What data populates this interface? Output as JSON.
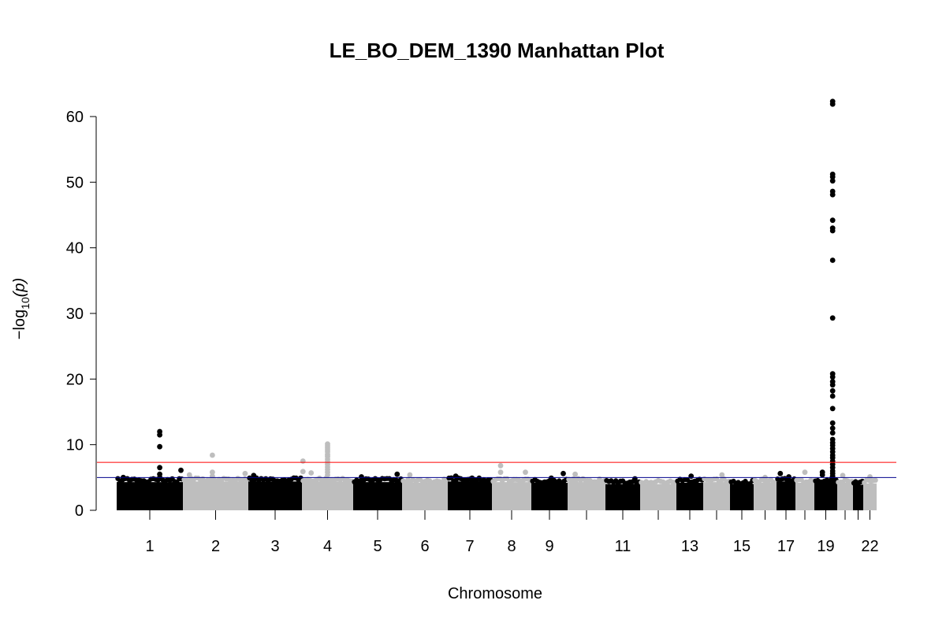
{
  "chart_data": {
    "type": "scatter",
    "title": "LE_BO_DEM_1390 Manhattan Plot",
    "xlabel": "Chromosome",
    "ylabel": "−log",
    "ylabel_sub": "10",
    "ylabel_arg": "(p)",
    "ylim": [
      0,
      62
    ],
    "yticks": [
      0,
      10,
      20,
      30,
      40,
      50,
      60
    ],
    "grid": false,
    "legend": "none",
    "colors": {
      "odd_chromosome": "#000000",
      "even_chromosome": "#bebebe",
      "suggestive_line": "#00008b",
      "genomewide_line": "#ff0000"
    },
    "thresholds": {
      "suggestive": 5,
      "genomewide": 7.3
    },
    "chromosomes": [
      "1",
      "2",
      "3",
      "4",
      "5",
      "6",
      "7",
      "8",
      "9",
      "10",
      "11",
      "12",
      "13",
      "14",
      "15",
      "16",
      "17",
      "18",
      "19",
      "20",
      "21",
      "22"
    ],
    "x_tick_labels": [
      "1",
      "2",
      "3",
      "4",
      "5",
      "6",
      "7",
      "8",
      "9",
      "",
      "11",
      "",
      "13",
      "",
      "15",
      "",
      "17",
      "",
      "19",
      "",
      "",
      "22"
    ],
    "baseline": [
      {
        "chr": "1",
        "top": 4.3
      },
      {
        "chr": "2",
        "top": 4.4
      },
      {
        "chr": "3",
        "top": 4.4
      },
      {
        "chr": "4",
        "top": 4.4
      },
      {
        "chr": "5",
        "top": 4.3
      },
      {
        "chr": "6",
        "top": 4.2
      },
      {
        "chr": "7",
        "top": 4.4
      },
      {
        "chr": "8",
        "top": 4.3
      },
      {
        "chr": "9",
        "top": 4.2
      },
      {
        "chr": "10",
        "top": 4.3
      },
      {
        "chr": "11",
        "top": 4.0
      },
      {
        "chr": "12",
        "top": 4.0
      },
      {
        "chr": "13",
        "top": 4.2
      },
      {
        "chr": "14",
        "top": 4.3
      },
      {
        "chr": "15",
        "top": 4.0
      },
      {
        "chr": "16",
        "top": 4.2
      },
      {
        "chr": "17",
        "top": 4.4
      },
      {
        "chr": "18",
        "top": 4.2
      },
      {
        "chr": "19",
        "top": 4.3
      },
      {
        "chr": "20",
        "top": 4.2
      },
      {
        "chr": "21",
        "top": 3.9
      },
      {
        "chr": "22",
        "top": 4.1
      }
    ],
    "peaks": [
      {
        "chr": "1",
        "pos": 0.65,
        "values": [
          12,
          11.5,
          9.7,
          6.5,
          5.5,
          5
        ]
      },
      {
        "chr": "1",
        "pos": 0.97,
        "values": [
          6.1
        ]
      },
      {
        "chr": "1",
        "pos": 0.1,
        "values": [
          5
        ]
      },
      {
        "chr": "2",
        "pos": 0.45,
        "values": [
          8.4,
          5.8,
          5.2
        ]
      },
      {
        "chr": "2",
        "pos": 0.1,
        "values": [
          5.4
        ]
      },
      {
        "chr": "2",
        "pos": 0.95,
        "values": [
          5.6
        ]
      },
      {
        "chr": "3",
        "pos": 0.1,
        "values": [
          5.3
        ]
      },
      {
        "chr": "4",
        "pos": 0.02,
        "values": [
          7.5,
          5.9
        ]
      },
      {
        "chr": "4",
        "pos": 0.18,
        "values": [
          5.7
        ]
      },
      {
        "chr": "4",
        "pos": 0.5,
        "values": [
          10.1,
          9.8,
          9.5,
          9.2,
          8.9,
          8.5,
          8.2,
          7.8,
          7.4,
          7.0,
          6.6,
          6.2,
          5.8,
          5.4
        ]
      },
      {
        "chr": "5",
        "pos": 0.17,
        "values": [
          5.1
        ]
      },
      {
        "chr": "5",
        "pos": 0.9,
        "values": [
          5.5
        ]
      },
      {
        "chr": "6",
        "pos": 0.17,
        "values": [
          5.4
        ]
      },
      {
        "chr": "7",
        "pos": 0.18,
        "values": [
          5.2
        ]
      },
      {
        "chr": "7",
        "pos": 0.55,
        "values": [
          4.9
        ]
      },
      {
        "chr": "8",
        "pos": 0.22,
        "values": [
          6.8,
          5.8
        ]
      },
      {
        "chr": "8",
        "pos": 0.85,
        "values": [
          5.8
        ]
      },
      {
        "chr": "9",
        "pos": 0.55,
        "values": [
          4.9
        ]
      },
      {
        "chr": "9",
        "pos": 0.88,
        "values": [
          5.6
        ]
      },
      {
        "chr": "10",
        "pos": 0.2,
        "values": [
          5.5
        ]
      },
      {
        "chr": "11",
        "pos": 0.85,
        "values": [
          4.8
        ]
      },
      {
        "chr": "13",
        "pos": 0.55,
        "values": [
          5.2
        ]
      },
      {
        "chr": "14",
        "pos": 0.7,
        "values": [
          5.4
        ]
      },
      {
        "chr": "16",
        "pos": 0.5,
        "values": [
          5.0
        ]
      },
      {
        "chr": "17",
        "pos": 0.2,
        "values": [
          5.6
        ]
      },
      {
        "chr": "17",
        "pos": 0.65,
        "values": [
          5.1
        ]
      },
      {
        "chr": "18",
        "pos": 0.5,
        "values": [
          5.8
        ]
      },
      {
        "chr": "19",
        "pos": 0.35,
        "values": [
          5.8,
          5.4
        ]
      },
      {
        "chr": "19",
        "pos": 0.8,
        "values": [
          62.3,
          61.9,
          51.2,
          50.8,
          50.2,
          48.6,
          48.1,
          44.2,
          43.0,
          42.6,
          38.1,
          29.3,
          20.8,
          20.3,
          19.6,
          19.1,
          18.2,
          17.4,
          15.5,
          13.3,
          12.5,
          11.8,
          10.8,
          10.3,
          9.9,
          9.4,
          8.9,
          8.4,
          8.0,
          7.5,
          7.0,
          6.5,
          6.0,
          5.6,
          5.2
        ]
      },
      {
        "chr": "20",
        "pos": 0.35,
        "values": [
          5.3
        ]
      },
      {
        "chr": "22",
        "pos": 0.5,
        "values": [
          5.1
        ]
      }
    ]
  }
}
